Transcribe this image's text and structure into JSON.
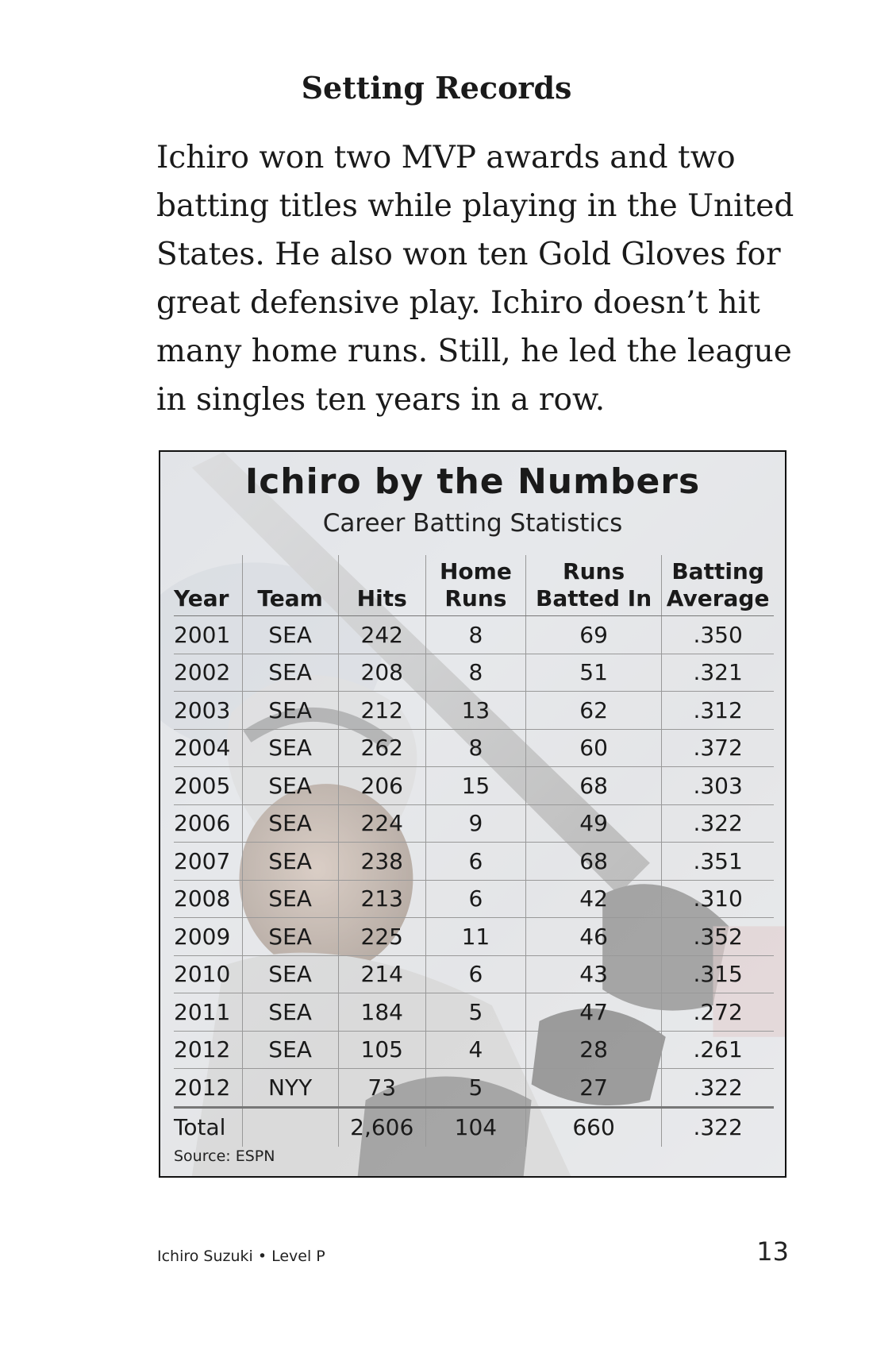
{
  "heading": "Setting Records",
  "lines": [
    "Ichiro won two MVP awards and two",
    "batting titles while playing in the United",
    "States. He also won ten Gold Gloves for",
    "great defensive play. Ichiro doesn’t hit",
    "many home runs. Still, he led the league",
    "in singles ten years in a row."
  ],
  "stats_box": {
    "title": "Ichiro by the Numbers",
    "subtitle": "Career Batting Statistics",
    "headers": {
      "year": "Year",
      "team": "Team",
      "hits": "Hits",
      "hr_1": "Home",
      "hr_2": "Runs",
      "rbi_1": "Runs",
      "rbi_2": "Batted In",
      "avg_1": "Batting",
      "avg_2": "Average"
    },
    "rows": [
      [
        "2001",
        "SEA",
        "242",
        "8",
        "69",
        ".350"
      ],
      [
        "2002",
        "SEA",
        "208",
        "8",
        "51",
        ".321"
      ],
      [
        "2003",
        "SEA",
        "212",
        "13",
        "62",
        ".312"
      ],
      [
        "2004",
        "SEA",
        "262",
        "8",
        "60",
        ".372"
      ],
      [
        "2005",
        "SEA",
        "206",
        "15",
        "68",
        ".303"
      ],
      [
        "2006",
        "SEA",
        "224",
        "9",
        "49",
        ".322"
      ],
      [
        "2007",
        "SEA",
        "238",
        "6",
        "68",
        ".351"
      ],
      [
        "2008",
        "SEA",
        "213",
        "6",
        "42",
        ".310"
      ],
      [
        "2009",
        "SEA",
        "225",
        "11",
        "46",
        ".352"
      ],
      [
        "2010",
        "SEA",
        "214",
        "6",
        "43",
        ".315"
      ],
      [
        "2011",
        "SEA",
        "184",
        "5",
        "47",
        ".272"
      ],
      [
        "2012",
        "SEA",
        "105",
        "4",
        "28",
        ".261"
      ],
      [
        "2012",
        "NYY",
        "73",
        "5",
        "27",
        ".322"
      ]
    ],
    "total": [
      "Total",
      "",
      "2,606",
      "104",
      "660",
      ".322"
    ],
    "source": "Source: ESPN"
  },
  "footer": {
    "left": "Ichiro Suzuki • Level P",
    "page_number": "13"
  }
}
